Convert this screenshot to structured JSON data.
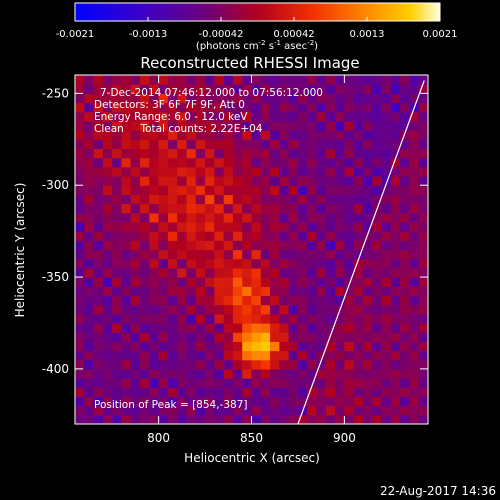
{
  "chart_data": {
    "type": "heatmap",
    "title": "Reconstructed RHESSI Image",
    "xlabel": "Heliocentric X (arcsec)",
    "ylabel": "Heliocentric Y (arcsec)",
    "xlim": [
      755,
      945
    ],
    "ylim": [
      -430,
      -240
    ],
    "xticks": [
      800,
      850,
      900
    ],
    "yticks": [
      -250,
      -300,
      -350,
      -400
    ],
    "colorbar": {
      "ticks": [
        "-0.0021",
        "-0.0013",
        "-0.00042",
        "0.00042",
        "0.0013",
        "0.0021"
      ],
      "min": -0.0021,
      "max": 0.0021,
      "unit_prefix": "(photons cm",
      "unit_sup1": "-2",
      "unit_mid1": " s",
      "unit_sup2": "-1",
      "unit_mid2": " asec",
      "unit_sup3": "-2",
      "unit_suffix": ")"
    },
    "annotations": [
      "7-Dec-2014 07:46:12.000 to 07:56:12.000",
      "Detectors: 3F 6F 7F 9F, Att 0",
      "Energy Range: 6.0 - 12.0 keV",
      "Clean     Total counts: 2.22E+04"
    ],
    "peak_label": "Position of Peak = [854,-387]",
    "peak": [
      854,
      -387
    ],
    "limb_line": [
      [
        875,
        -430
      ],
      [
        943,
        -243
      ]
    ],
    "grid": false,
    "timestamp": "22-Aug-2017 14:36"
  }
}
